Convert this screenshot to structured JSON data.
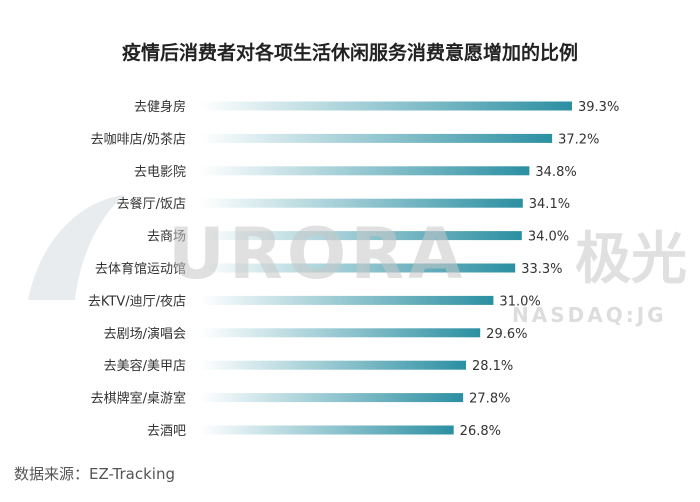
{
  "title": "疫情后消费者对各项生活休闲服务消费意愿增加的比例",
  "source": "数据来源：EZ-Tracking",
  "watermark": {
    "brand": "URORA",
    "brand_cn": "极光",
    "ticker": "NASDAQ:JG"
  },
  "colors": {
    "bar_start": "#ffffff",
    "bar_end": "#2b8fa2",
    "watermark": "#c8c8c8"
  },
  "chart_data": {
    "type": "bar",
    "orientation": "horizontal",
    "title": "疫情后消费者对各项生活休闲服务消费意愿增加的比例",
    "categories": [
      "去健身房",
      "去咖啡店/奶茶店",
      "去电影院",
      "去餐厅/饭店",
      "去商场",
      "去体育馆运动馆",
      "去KTV/迪厅/夜店",
      "去剧场/演唱会",
      "去美容/美甲店",
      "去棋牌室/桌游室",
      "去酒吧"
    ],
    "values": [
      39.3,
      37.2,
      34.8,
      34.1,
      34.0,
      33.3,
      31.0,
      29.6,
      28.1,
      27.8,
      26.8
    ],
    "value_labels": [
      "39.3%",
      "37.2%",
      "34.8%",
      "34.1%",
      "34.0%",
      "33.3%",
      "31.0%",
      "29.6%",
      "28.1%",
      "27.8%",
      "26.8%"
    ],
    "xlim": [
      0,
      39.3
    ],
    "grid": false,
    "legend": "none"
  }
}
